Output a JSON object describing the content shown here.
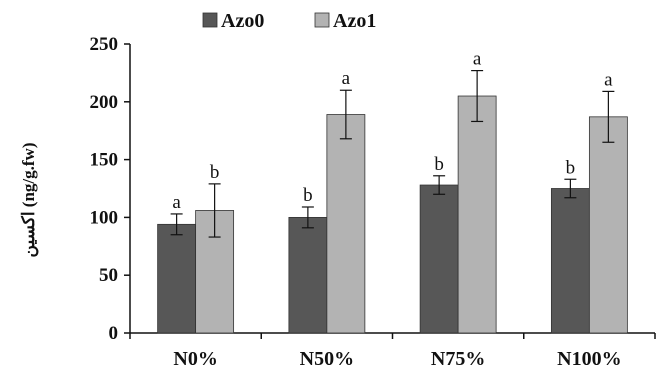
{
  "chart_data": {
    "type": "bar",
    "categories": [
      "N0%",
      "N50%",
      "N75%",
      "N100%"
    ],
    "series": [
      {
        "name": "Azo0",
        "color": "#575757",
        "values": [
          94,
          100,
          128,
          125
        ],
        "errors": [
          9,
          9,
          8,
          8
        ],
        "significance": [
          "a",
          "b",
          "b",
          "b"
        ]
      },
      {
        "name": "Azo1",
        "color": "#b3b3b3",
        "values": [
          106,
          189,
          205,
          187
        ],
        "errors": [
          23,
          21,
          22,
          22
        ],
        "significance": [
          "b",
          "a",
          "a",
          "a"
        ]
      }
    ],
    "ylabel": "(ng/g.fw)  اکسین",
    "ylim": [
      0,
      250
    ],
    "yticks": [
      0,
      50,
      100,
      150,
      200,
      250
    ],
    "grid": false,
    "legend_position": "top"
  }
}
